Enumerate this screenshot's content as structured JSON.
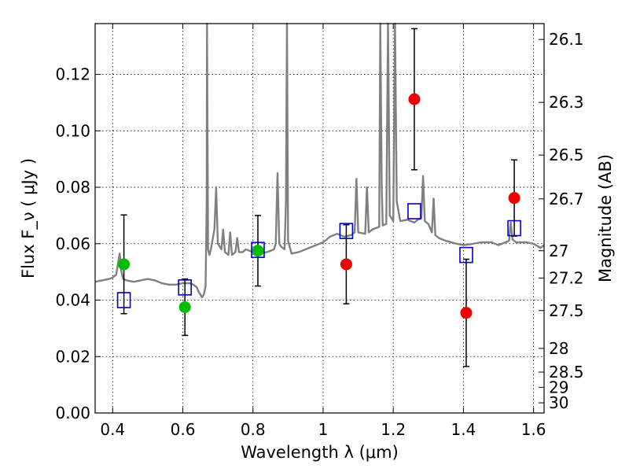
{
  "chart_data": {
    "type": "scatter",
    "title": "",
    "xlabel": "Wavelength  λ (μm)",
    "ylabel": "Flux  F_ν  ( μJy )",
    "ylabel_right": "Magnitude (AB)",
    "xlim": [
      0.35,
      1.63
    ],
    "ylim": [
      0.0,
      0.138
    ],
    "grid": true,
    "x_ticks": [
      0.4,
      0.6,
      0.8,
      1.0,
      1.2,
      1.4,
      1.6
    ],
    "x_tick_labels": [
      "0.4",
      "0.6",
      "0.8",
      "1",
      "1.2",
      "1.4",
      "1.6"
    ],
    "y_ticks": [
      0.0,
      0.02,
      0.04,
      0.06,
      0.08,
      0.1,
      0.12
    ],
    "y_tick_labels": [
      "0.00",
      "0.02",
      "0.04",
      "0.06",
      "0.08",
      "0.10",
      "0.12"
    ],
    "right_ticks": [
      {
        "flux": 0.1324,
        "label": "26.1"
      },
      {
        "flux": 0.1101,
        "label": "26.3"
      },
      {
        "flux": 0.0914,
        "label": "26.5"
      },
      {
        "flux": 0.0759,
        "label": "26.7"
      },
      {
        "flux": 0.0575,
        "label": "27"
      },
      {
        "flux": 0.0478,
        "label": "27.2"
      },
      {
        "flux": 0.0363,
        "label": "27.5"
      },
      {
        "flux": 0.0229,
        "label": "28"
      },
      {
        "flux": 0.0145,
        "label": "28.5"
      },
      {
        "flux": 0.0091,
        "label": "29"
      },
      {
        "flux": 0.0036,
        "label": "30"
      }
    ],
    "colors": {
      "spectrum": "#808080",
      "green": "#00bb00",
      "red": "#ee0000",
      "model": "#0000cc",
      "errorbar": "#000000"
    },
    "series": [
      {
        "name": "observed-flux-green",
        "marker": "filled-circle",
        "points": [
          {
            "x": 0.432,
            "y": 0.0527,
            "err": 0.0175
          },
          {
            "x": 0.606,
            "y": 0.0375,
            "err": 0.01
          },
          {
            "x": 0.814,
            "y": 0.0575,
            "err": 0.0125
          }
        ]
      },
      {
        "name": "observed-flux-red",
        "marker": "filled-circle",
        "points": [
          {
            "x": 1.066,
            "y": 0.0527,
            "err": 0.014
          },
          {
            "x": 1.26,
            "y": 0.1112,
            "err": 0.025
          },
          {
            "x": 1.408,
            "y": 0.0355,
            "err": 0.019
          },
          {
            "x": 1.545,
            "y": 0.0762,
            "err": 0.0135
          }
        ]
      },
      {
        "name": "model-flux",
        "marker": "open-square",
        "points": [
          {
            "x": 0.432,
            "y": 0.04
          },
          {
            "x": 0.606,
            "y": 0.0445
          },
          {
            "x": 0.814,
            "y": 0.0578
          },
          {
            "x": 1.066,
            "y": 0.0645
          },
          {
            "x": 1.26,
            "y": 0.0715
          },
          {
            "x": 1.408,
            "y": 0.056
          },
          {
            "x": 1.545,
            "y": 0.0655
          }
        ]
      }
    ],
    "spectrum": {
      "name": "model-spectrum",
      "x": [
        0.35,
        0.37,
        0.39,
        0.4,
        0.41,
        0.415,
        0.42,
        0.425,
        0.43,
        0.44,
        0.46,
        0.48,
        0.5,
        0.52,
        0.54,
        0.56,
        0.58,
        0.6,
        0.62,
        0.63,
        0.64,
        0.645,
        0.65,
        0.655,
        0.66,
        0.665,
        0.668,
        0.669,
        0.672,
        0.676,
        0.68,
        0.69,
        0.695,
        0.7,
        0.71,
        0.715,
        0.72,
        0.73,
        0.735,
        0.74,
        0.75,
        0.755,
        0.76,
        0.77,
        0.78,
        0.8,
        0.82,
        0.84,
        0.86,
        0.865,
        0.87,
        0.875,
        0.88,
        0.89,
        0.894,
        0.897,
        0.9,
        0.91,
        0.93,
        0.95,
        0.98,
        1.0,
        1.02,
        1.04,
        1.06,
        1.08,
        1.09,
        1.095,
        1.1,
        1.12,
        1.125,
        1.13,
        1.14,
        1.16,
        1.163,
        1.167,
        1.17,
        1.18,
        1.185,
        1.19,
        1.2,
        1.205,
        1.21,
        1.22,
        1.24,
        1.26,
        1.27,
        1.28,
        1.285,
        1.29,
        1.3,
        1.31,
        1.315,
        1.32,
        1.33,
        1.35,
        1.38,
        1.4,
        1.42,
        1.45,
        1.48,
        1.5,
        1.52,
        1.53,
        1.535,
        1.54,
        1.55,
        1.56,
        1.58,
        1.6,
        1.62,
        1.63
      ],
      "y": [
        0.0465,
        0.047,
        0.0475,
        0.048,
        0.049,
        0.053,
        0.0565,
        0.05,
        0.0475,
        0.047,
        0.0465,
        0.047,
        0.0475,
        0.047,
        0.046,
        0.0455,
        0.0455,
        0.046,
        0.046,
        0.0455,
        0.0445,
        0.043,
        0.042,
        0.041,
        0.042,
        0.045,
        0.075,
        0.138,
        0.058,
        0.056,
        0.058,
        0.065,
        0.08,
        0.06,
        0.058,
        0.065,
        0.057,
        0.056,
        0.064,
        0.056,
        0.057,
        0.062,
        0.057,
        0.057,
        0.058,
        0.057,
        0.0565,
        0.057,
        0.058,
        0.06,
        0.085,
        0.06,
        0.059,
        0.058,
        0.075,
        0.138,
        0.061,
        0.0565,
        0.057,
        0.058,
        0.0595,
        0.0605,
        0.0625,
        0.0635,
        0.0625,
        0.063,
        0.064,
        0.083,
        0.064,
        0.0635,
        0.08,
        0.064,
        0.065,
        0.066,
        0.138,
        0.08,
        0.0665,
        0.067,
        0.138,
        0.07,
        0.068,
        0.138,
        0.075,
        0.068,
        0.0685,
        0.0675,
        0.0685,
        0.069,
        0.084,
        0.068,
        0.067,
        0.064,
        0.076,
        0.063,
        0.062,
        0.061,
        0.06,
        0.0595,
        0.0598,
        0.0605,
        0.0605,
        0.0595,
        0.0605,
        0.061,
        0.0675,
        0.0615,
        0.0605,
        0.0605,
        0.0605,
        0.06,
        0.0585,
        0.0595
      ]
    }
  }
}
